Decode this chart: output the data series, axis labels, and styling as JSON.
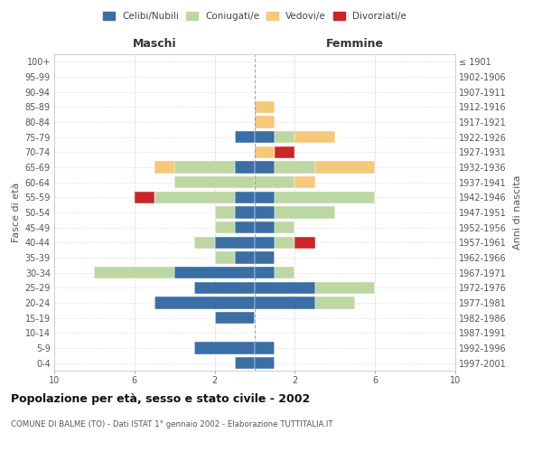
{
  "age_groups": [
    "0-4",
    "5-9",
    "10-14",
    "15-19",
    "20-24",
    "25-29",
    "30-34",
    "35-39",
    "40-44",
    "45-49",
    "50-54",
    "55-59",
    "60-64",
    "65-69",
    "70-74",
    "75-79",
    "80-84",
    "85-89",
    "90-94",
    "95-99",
    "100+"
  ],
  "birth_years": [
    "1997-2001",
    "1992-1996",
    "1987-1991",
    "1982-1986",
    "1977-1981",
    "1972-1976",
    "1967-1971",
    "1962-1966",
    "1957-1961",
    "1952-1956",
    "1947-1951",
    "1942-1946",
    "1937-1941",
    "1932-1936",
    "1927-1931",
    "1922-1926",
    "1917-1921",
    "1912-1916",
    "1907-1911",
    "1902-1906",
    "≤ 1901"
  ],
  "maschi": {
    "celibi": [
      1,
      3,
      0,
      2,
      5,
      3,
      4,
      1,
      2,
      1,
      1,
      1,
      0,
      1,
      0,
      1,
      0,
      0,
      0,
      0,
      0
    ],
    "coniugati": [
      0,
      0,
      0,
      0,
      0,
      0,
      4,
      1,
      1,
      1,
      1,
      4,
      4,
      3,
      0,
      0,
      0,
      0,
      0,
      0,
      0
    ],
    "vedovi": [
      0,
      0,
      0,
      0,
      0,
      0,
      0,
      0,
      0,
      0,
      0,
      0,
      0,
      1,
      0,
      0,
      0,
      0,
      0,
      0,
      0
    ],
    "divorziati": [
      0,
      0,
      0,
      0,
      0,
      0,
      0,
      0,
      0,
      0,
      0,
      1,
      0,
      0,
      0,
      0,
      0,
      0,
      0,
      0,
      0
    ]
  },
  "femmine": {
    "nubili": [
      1,
      1,
      0,
      0,
      3,
      3,
      1,
      1,
      1,
      1,
      1,
      1,
      0,
      1,
      0,
      1,
      0,
      0,
      0,
      0,
      0
    ],
    "coniugate": [
      0,
      0,
      0,
      0,
      2,
      3,
      1,
      0,
      1,
      1,
      3,
      5,
      2,
      2,
      0,
      1,
      0,
      0,
      0,
      0,
      0
    ],
    "vedove": [
      0,
      0,
      0,
      0,
      0,
      0,
      0,
      0,
      0,
      0,
      0,
      0,
      1,
      3,
      1,
      2,
      1,
      1,
      0,
      0,
      0
    ],
    "divorziate": [
      0,
      0,
      0,
      0,
      0,
      0,
      0,
      0,
      1,
      0,
      0,
      0,
      0,
      0,
      1,
      0,
      0,
      0,
      0,
      0,
      0
    ]
  },
  "colors": {
    "celibi_nubili": "#3A6EA5",
    "coniugati": "#BDD7A3",
    "vedovi": "#F5C87A",
    "divorziati": "#CC2529"
  },
  "xlim": 10,
  "title": "Popolazione per età, sesso e stato civile - 2002",
  "subtitle": "COMUNE DI BALME (TO) - Dati ISTAT 1° gennaio 2002 - Elaborazione TUTTITALIA.IT",
  "ylabel": "Fasce di età",
  "ylabel_right": "Anni di nascita",
  "xlabel_left": "Maschi",
  "xlabel_right": "Femmine",
  "background_color": "#ffffff",
  "grid_color": "#cccccc"
}
